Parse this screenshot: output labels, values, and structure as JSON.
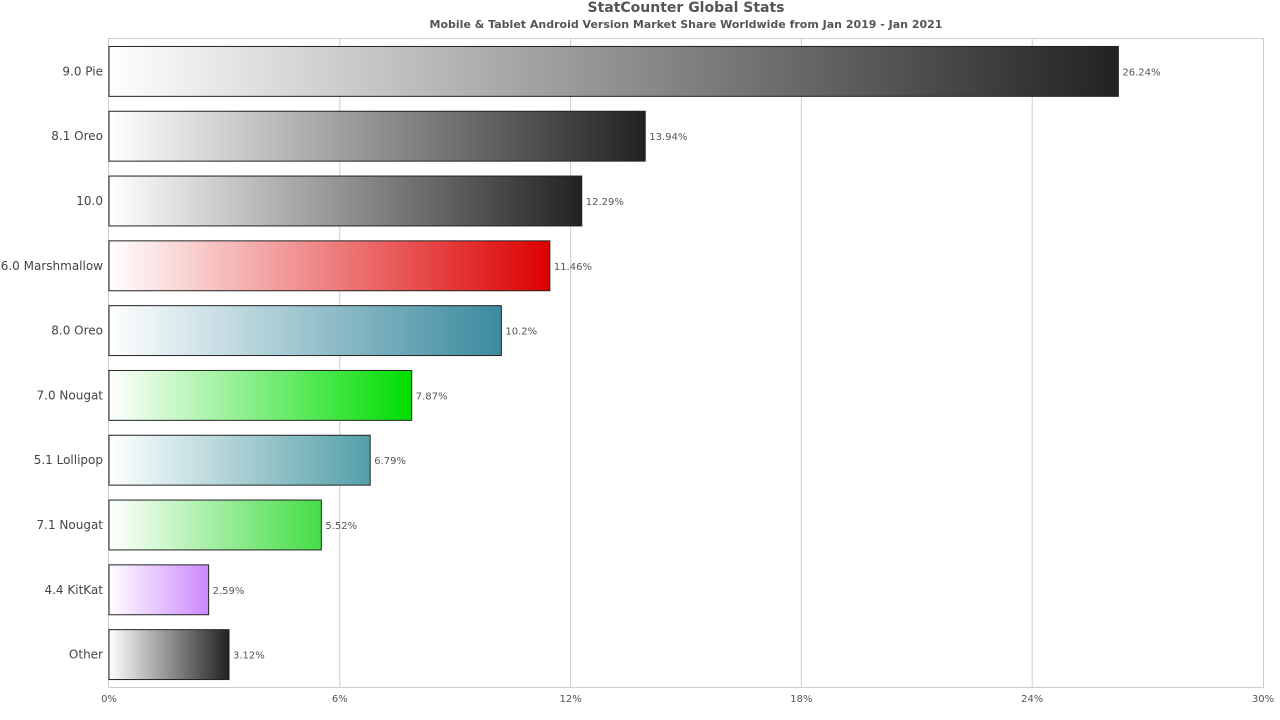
{
  "chart_data": {
    "type": "bar",
    "orientation": "horizontal",
    "title": "StatCounter Global Stats",
    "subtitle": "Mobile & Tablet Android Version Market Share Worldwide from Jan 2019 - Jan 2021",
    "xlabel": "",
    "ylabel": "",
    "xlim": [
      0,
      30
    ],
    "x_ticks": [
      0,
      6,
      12,
      18,
      24,
      30
    ],
    "x_tick_labels": [
      "0%",
      "6%",
      "12%",
      "18%",
      "24%",
      "30%"
    ],
    "grid": "vertical",
    "legend": "none",
    "categories": [
      "9.0 Pie",
      "8.1 Oreo",
      "10.0",
      "6.0 Marshmallow",
      "8.0 Oreo",
      "7.0 Nougat",
      "5.1 Lollipop",
      "7.1 Nougat",
      "4.4 KitKat",
      "Other"
    ],
    "values": [
      26.24,
      13.94,
      12.29,
      11.46,
      10.2,
      7.87,
      6.79,
      5.52,
      2.59,
      3.12
    ],
    "value_labels": [
      "26.24%",
      "13.94%",
      "12.29%",
      "11.46%",
      "10.2%",
      "7.87%",
      "6.79%",
      "5.52%",
      "2.59%",
      "3.12%"
    ],
    "colors": [
      "#222222",
      "#222222",
      "#222222",
      "#dd0000",
      "#3a8a9e",
      "#00dd00",
      "#52a0a8",
      "#44dd44",
      "#cc88ff",
      "#222222"
    ]
  }
}
